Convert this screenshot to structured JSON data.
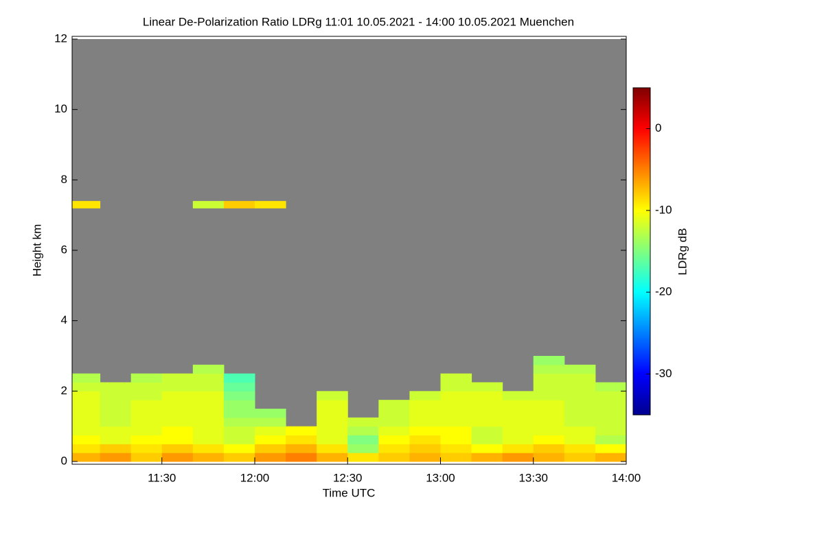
{
  "chart_data": {
    "type": "heatmap",
    "title": "Linear De-Polarization Ratio LDRg   11:01 10.05.2021 - 14:00 10.05.2021 Muenchen",
    "x_label": "Time UTC",
    "y_label": "Height km",
    "colorbar_label": "LDRg dB",
    "x_edges": [
      661,
      670,
      680,
      690,
      700,
      710,
      720,
      730,
      740,
      750,
      760,
      770,
      780,
      790,
      800,
      810,
      820,
      830,
      840
    ],
    "y_edges": [
      0,
      0.25,
      0.5,
      0.75,
      1.0,
      1.25,
      1.5,
      1.75,
      2.0,
      2.25,
      2.5,
      2.75,
      3.0,
      3.25,
      7.2,
      7.4
    ],
    "values": [
      [
        -7,
        -6,
        -8,
        -6,
        -7,
        -8,
        -6,
        -5,
        -7,
        -9,
        -8,
        -7,
        -8,
        -7,
        -6,
        -7,
        -8,
        -7
      ],
      [
        -9,
        -8,
        -9,
        -8,
        -9,
        -10,
        -8,
        -7,
        -9,
        -14,
        -9,
        -8,
        -9,
        -10,
        -9,
        -8,
        -9,
        -10
      ],
      [
        -10,
        -11,
        -10,
        -10,
        -11,
        -12,
        -10,
        -9,
        -11,
        -15,
        -10,
        -9,
        -10,
        -12,
        -11,
        -10,
        -11,
        -13
      ],
      [
        -11,
        -11,
        -11,
        -10,
        -11,
        -12,
        -11,
        -10,
        -11,
        -13,
        -11,
        -10,
        -10,
        -12,
        -11,
        -11,
        -11,
        -12
      ],
      [
        -11,
        -12,
        -11,
        -11,
        -11,
        -13,
        -13,
        null,
        -11,
        -12,
        -12,
        -11,
        -11,
        -11,
        -11,
        -11,
        -12,
        -12
      ],
      [
        -11,
        -12,
        -11,
        -11,
        -11,
        -14,
        -14,
        null,
        -11,
        null,
        -12,
        -11,
        -11,
        -11,
        -11,
        -11,
        -12,
        -12
      ],
      [
        -11,
        -12,
        -11,
        -11,
        -11,
        -14,
        null,
        null,
        -11,
        null,
        -12,
        -11,
        -11,
        -11,
        -11,
        -11,
        -12,
        -12
      ],
      [
        -11,
        -12,
        -12,
        -11,
        -11,
        -15,
        null,
        null,
        -12,
        null,
        null,
        -12,
        -11,
        -11,
        -12,
        -12,
        -12,
        -12
      ],
      [
        -12,
        -12,
        -12,
        -12,
        -12,
        -16,
        null,
        null,
        null,
        null,
        null,
        null,
        -12,
        -12,
        null,
        -12,
        -12,
        -13
      ],
      [
        -13,
        null,
        -13,
        -12,
        -12,
        -17,
        null,
        null,
        null,
        null,
        null,
        null,
        -12,
        null,
        null,
        -12,
        -12,
        null
      ],
      [
        null,
        null,
        null,
        null,
        -13,
        null,
        null,
        null,
        null,
        null,
        null,
        null,
        null,
        null,
        null,
        -13,
        -13,
        null
      ],
      [
        null,
        null,
        null,
        null,
        null,
        null,
        null,
        null,
        null,
        null,
        null,
        null,
        null,
        null,
        null,
        -14,
        null,
        null
      ],
      [
        null,
        null,
        null,
        null,
        null,
        null,
        null,
        null,
        null,
        null,
        null,
        null,
        null,
        null,
        null,
        null,
        null,
        null
      ],
      [
        null,
        null,
        null,
        null,
        null,
        null,
        null,
        null,
        null,
        null,
        null,
        null,
        null,
        null,
        null,
        null,
        null,
        null
      ],
      [
        -9,
        null,
        null,
        null,
        -12,
        -8,
        -9,
        null,
        null,
        null,
        null,
        null,
        null,
        null,
        null,
        null,
        null,
        null
      ]
    ],
    "xlim": [
      661,
      840
    ],
    "xticks": [
      {
        "value": 690,
        "label": "11:30"
      },
      {
        "value": 720,
        "label": "12:00"
      },
      {
        "value": 750,
        "label": "12:30"
      },
      {
        "value": 780,
        "label": "13:00"
      },
      {
        "value": 810,
        "label": "13:30"
      },
      {
        "value": 840,
        "label": "14:00"
      }
    ],
    "ylim": [
      0,
      12
    ],
    "yticks": [
      0,
      2,
      4,
      6,
      8,
      10,
      12
    ],
    "zlim": [
      -35,
      5
    ],
    "zticks": [
      0,
      -10,
      -20,
      -30
    ],
    "colormap": "jet",
    "no_data_color": "#808080"
  }
}
